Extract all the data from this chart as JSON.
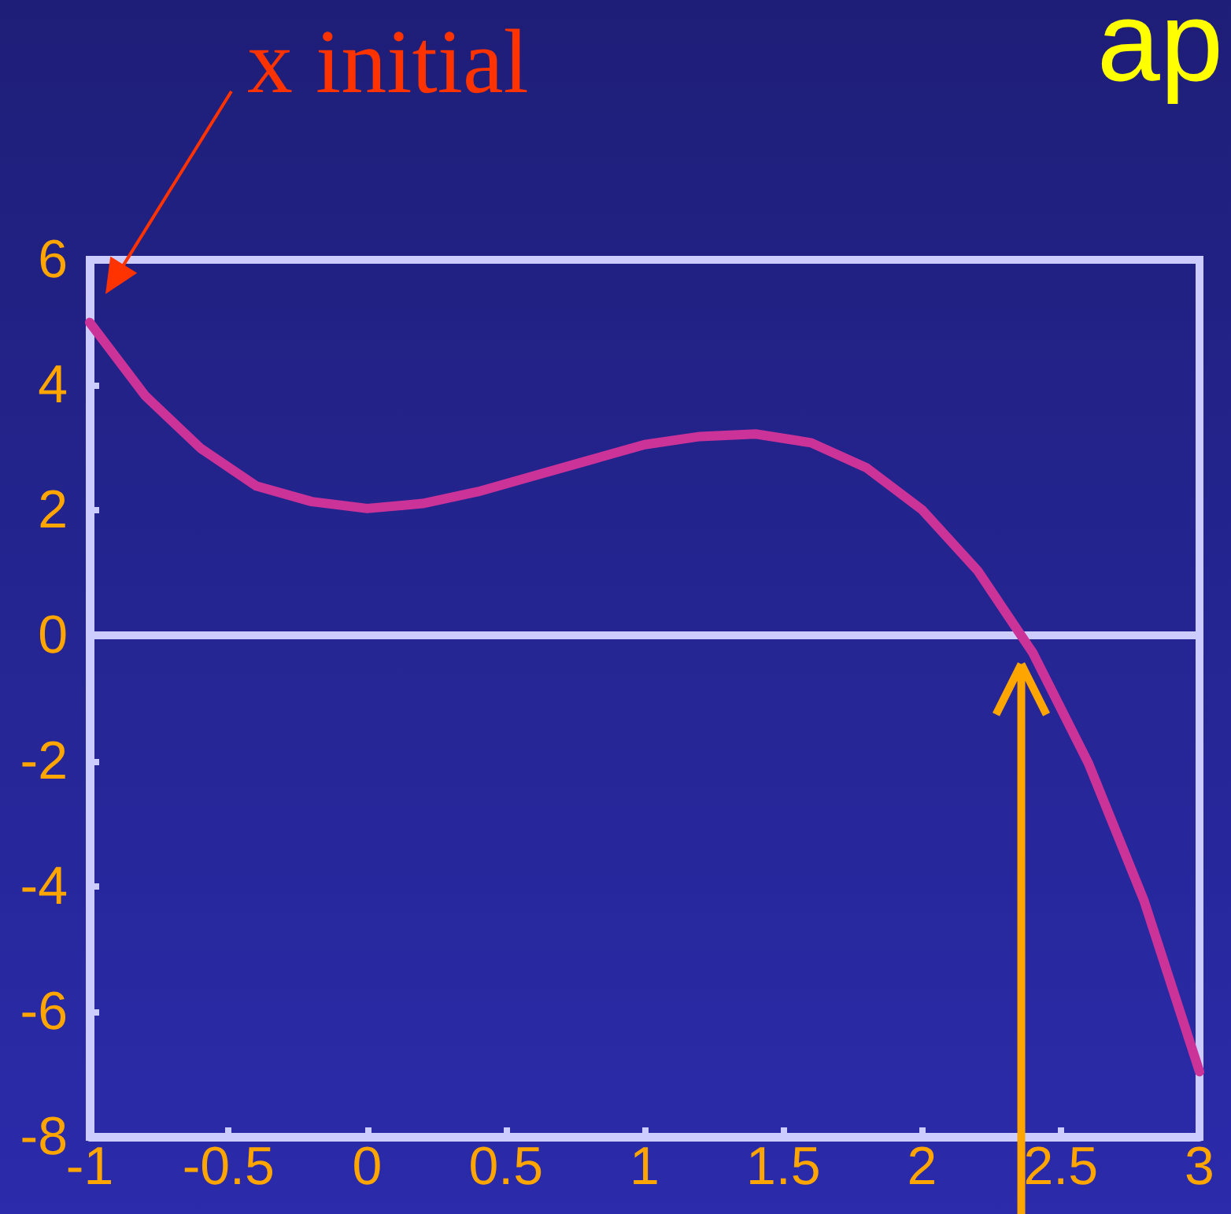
{
  "chart_data": {
    "type": "line",
    "title": "ap",
    "x": [
      -1,
      -0.8,
      -0.6,
      -0.4,
      -0.2,
      0,
      0.2,
      0.4,
      0.6,
      0.8,
      1,
      1.2,
      1.4,
      1.6,
      1.8,
      2,
      2.2,
      2.4,
      2.6,
      2.8,
      3
    ],
    "series": [
      {
        "color": "#cc3399",
        "values": [
          5.0,
          3.83,
          2.99,
          2.39,
          2.14,
          2.03,
          2.11,
          2.3,
          2.55,
          2.8,
          3.05,
          3.18,
          3.22,
          3.08,
          2.68,
          2.01,
          1.04,
          -0.28,
          -2.04,
          -4.23,
          -6.96
        ]
      }
    ],
    "xlim": [
      -1,
      3
    ],
    "xticks": [
      -1,
      -0.5,
      0,
      0.5,
      1,
      1.5,
      2,
      2.5,
      3
    ],
    "ylim": [
      -8,
      6
    ],
    "yticks": [
      -8,
      -6,
      -4,
      -2,
      0,
      2,
      4,
      6
    ],
    "ref_lines": [
      {
        "axis": "y",
        "value": 0,
        "color": "#ccccff"
      }
    ],
    "annotations": [
      {
        "text": "x initial",
        "x": -1,
        "y": 5
      }
    ],
    "grid": false,
    "marker": "none",
    "line_style": "solid"
  }
}
